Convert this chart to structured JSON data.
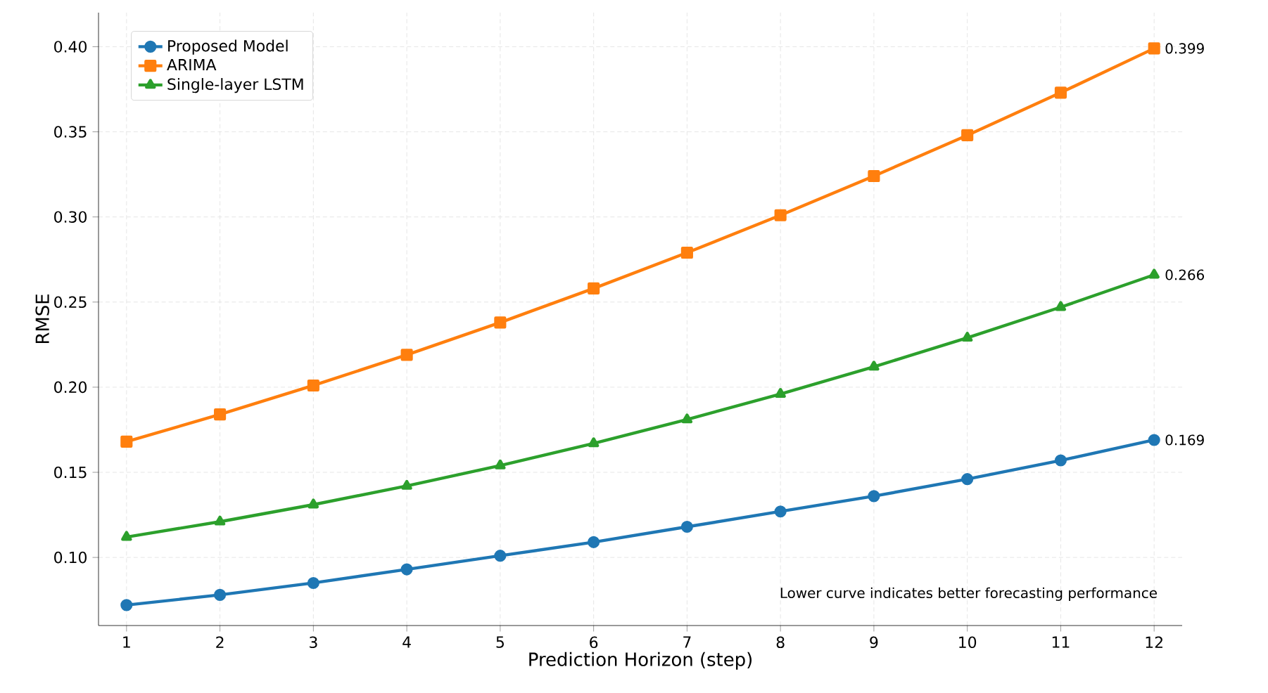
{
  "chart_data": {
    "type": "line",
    "xlabel": "Prediction Horizon (step)",
    "ylabel": "RMSE",
    "x": [
      1,
      2,
      3,
      4,
      5,
      6,
      7,
      8,
      9,
      10,
      11,
      12
    ],
    "series": [
      {
        "name": "Proposed Model",
        "color": "#1f77b4",
        "marker": "circle",
        "values": [
          0.072,
          0.078,
          0.085,
          0.093,
          0.101,
          0.109,
          0.118,
          0.127,
          0.136,
          0.146,
          0.157,
          0.169
        ],
        "value_labels": [
          null,
          null,
          null,
          null,
          null,
          null,
          null,
          null,
          null,
          null,
          null,
          "0.169"
        ]
      },
      {
        "name": "ARIMA",
        "color": "#ff7f0e",
        "marker": "square",
        "values": [
          0.168,
          0.184,
          0.201,
          0.219,
          0.238,
          0.258,
          0.279,
          0.301,
          0.324,
          0.348,
          0.373,
          0.399
        ],
        "value_labels": [
          null,
          null,
          null,
          null,
          null,
          null,
          null,
          null,
          null,
          null,
          null,
          "0.399"
        ]
      },
      {
        "name": "Single-layer LSTM",
        "color": "#2ca02c",
        "marker": "triangle",
        "values": [
          0.112,
          0.121,
          0.131,
          0.142,
          0.154,
          0.167,
          0.181,
          0.196,
          0.212,
          0.229,
          0.247,
          0.266
        ],
        "value_labels": [
          null,
          null,
          null,
          null,
          null,
          null,
          null,
          null,
          null,
          null,
          null,
          "0.266"
        ]
      }
    ],
    "xlim": [
      0.7,
      12.3
    ],
    "ylim": [
      0.06,
      0.42
    ],
    "xticks": [
      1,
      2,
      3,
      4,
      5,
      6,
      7,
      8,
      9,
      10,
      11,
      12
    ],
    "yticks": [
      {
        "value": 0.1,
        "label": "0.10"
      },
      {
        "value": 0.15,
        "label": "0.15"
      },
      {
        "value": 0.2,
        "label": "0.20"
      },
      {
        "value": 0.25,
        "label": "0.25"
      },
      {
        "value": 0.3,
        "label": "0.30"
      },
      {
        "value": 0.35,
        "label": "0.35"
      },
      {
        "value": 0.4,
        "label": "0.40"
      }
    ],
    "grid": true,
    "legend": "top left",
    "line_style": "solid",
    "annotations": [
      "Lower curve indicates better forecasting performance"
    ]
  }
}
